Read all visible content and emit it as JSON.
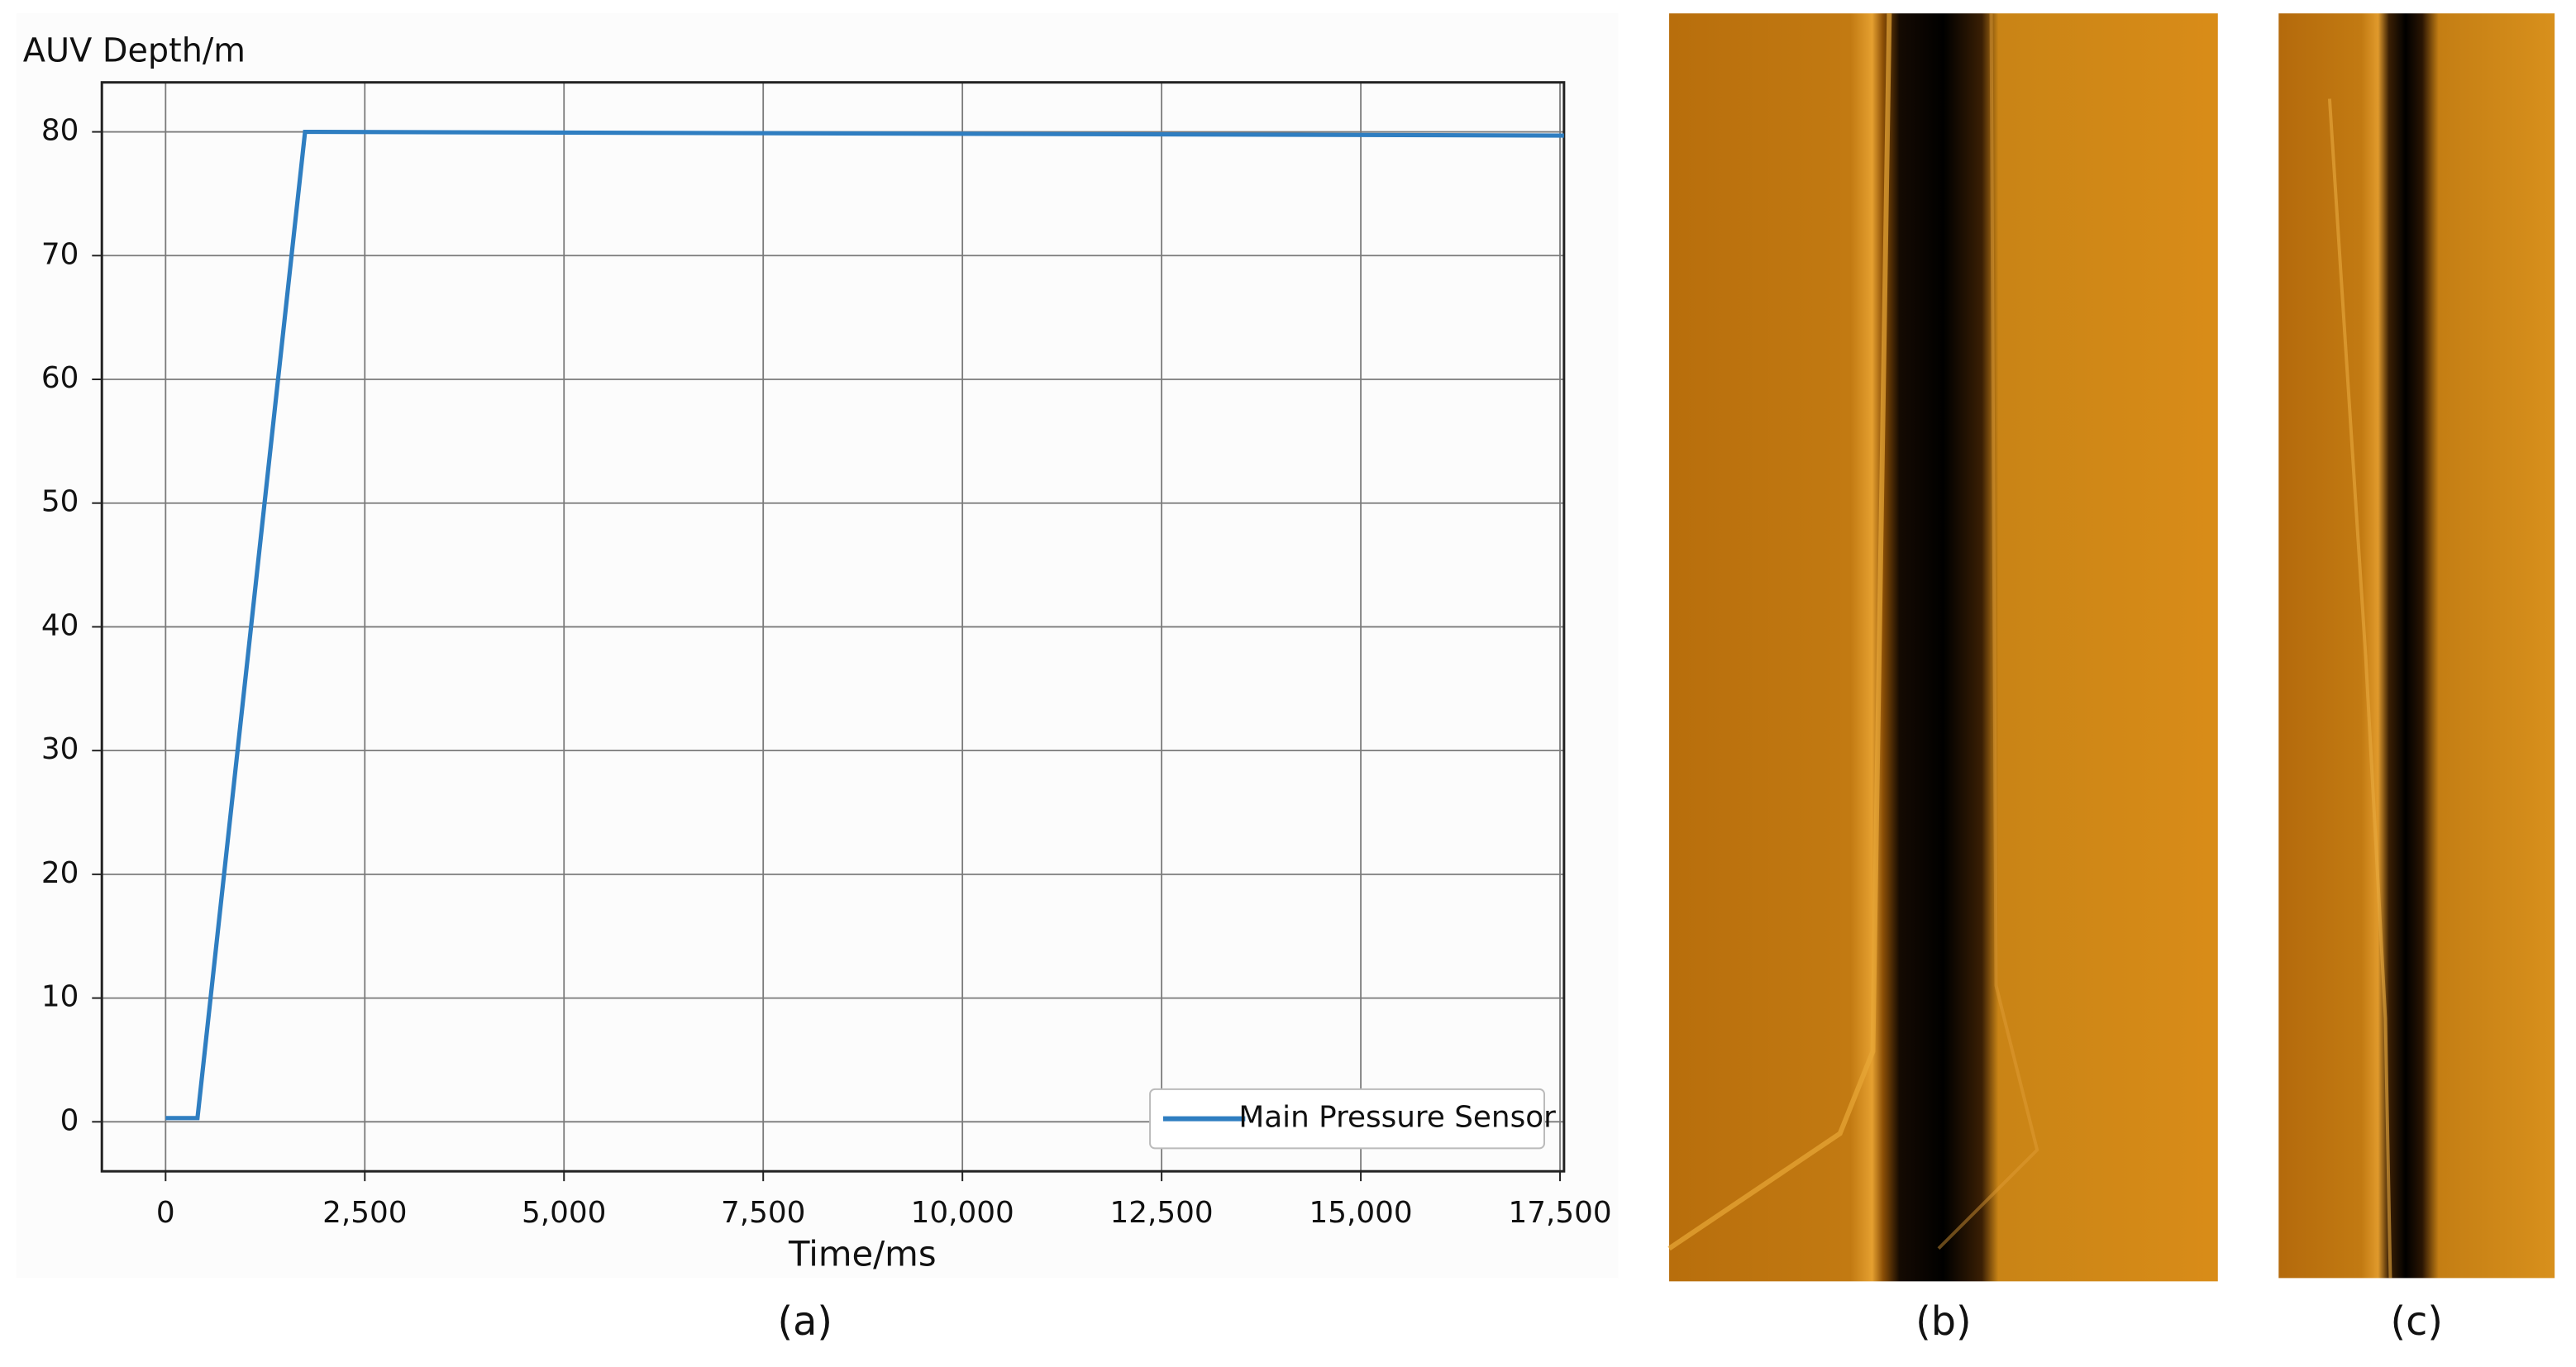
{
  "chart_data": {
    "type": "line",
    "y_label": "AUV Depth/m",
    "x_label": "Time/ms",
    "x": [
      0,
      400,
      1750,
      17550
    ],
    "series": [
      {
        "name": "Main Pressure Sensor",
        "color": "#2f7ec1",
        "values": [
          0.3,
          0.3,
          80,
          79.7
        ]
      }
    ],
    "xlim": [
      -800,
      17550
    ],
    "ylim": [
      -4,
      84
    ],
    "xticks": [
      0,
      {
        "value": 2500,
        "label": "2,500"
      },
      {
        "value": 5000,
        "label": "5,000"
      },
      {
        "value": 7500,
        "label": "7,500"
      },
      {
        "value": 10000,
        "label": "10,000"
      },
      {
        "value": 12500,
        "label": "12,500"
      },
      {
        "value": 15000,
        "label": "15,000"
      },
      {
        "value": 17500,
        "label": "17,500"
      }
    ],
    "yticks": [
      0,
      10,
      20,
      30,
      40,
      50,
      60,
      70,
      80
    ],
    "grid": true,
    "legend": "lower right"
  },
  "panels": [
    "(a)",
    "(b)",
    "(c)"
  ]
}
